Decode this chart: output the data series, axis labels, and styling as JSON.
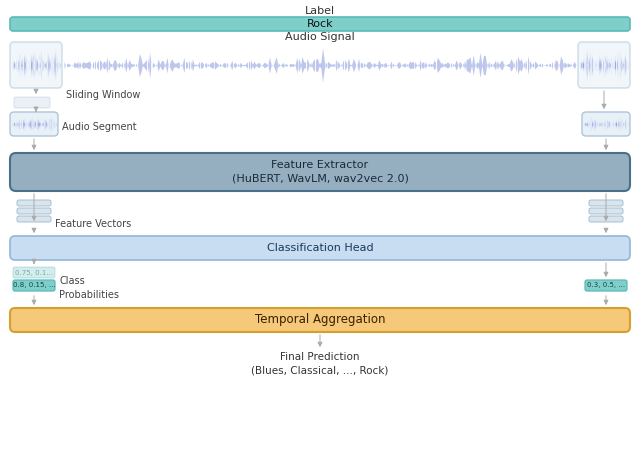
{
  "fig_width": 6.4,
  "fig_height": 4.71,
  "bg_color": "#ffffff",
  "label_text": "Label",
  "rock_text": "Rock",
  "rock_box_color": "#7ececa",
  "rock_box_edge": "#5bbaba",
  "audio_signal_text": "Audio Signal",
  "sliding_window_text": "Sliding Window",
  "audio_segment_text": "Audio Segment",
  "feature_extractor_text": "Feature Extractor\n(HuBERT, WavLM, wav2vec 2.0)",
  "feature_extractor_bg": "#96afc0",
  "feature_extractor_edge": "#4a6f8a",
  "feature_vectors_text": "Feature Vectors",
  "classification_head_text": "Classification Head",
  "classification_head_bg": "#c8dcf2",
  "classification_head_edge": "#90b8d8",
  "class_prob_text1": "0.75, 0.1...",
  "class_prob_text2": "0.8, 0.15, ...",
  "class_prob_text3": "0.3, 0.5, ...",
  "class_probabilities_label": "Class\nProbabilities",
  "temporal_agg_text": "Temporal Aggregation",
  "temporal_agg_bg": "#f5c87a",
  "temporal_agg_edge": "#d4a030",
  "final_pred_text": "Final Prediction\n(Blues, Classical, ..., Rock)",
  "arrow_color": "#aaaaaa",
  "waveform_color": "#8899dd",
  "small_box_bg": "#e8f0f8",
  "small_box_edge": "#b0c4d8",
  "prob_box_bg": "#7ececa",
  "prob_box_edge": "#5bbaba",
  "fv_bar_bg": "#d8e4ee",
  "fv_bar_edge": "#a8bece"
}
